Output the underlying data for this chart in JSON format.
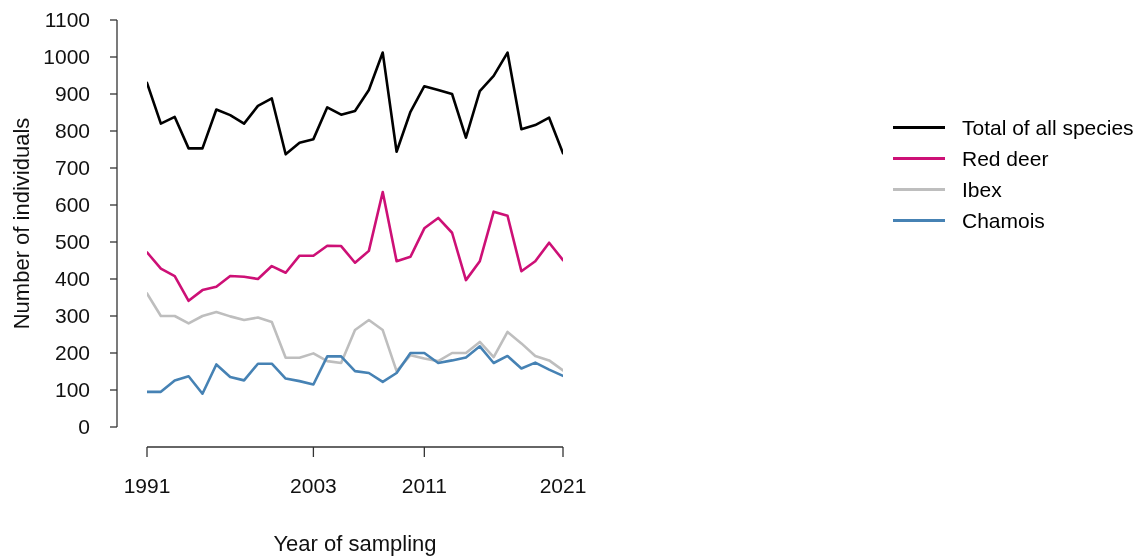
{
  "chart_data": {
    "type": "line",
    "xlabel": "Year of sampling",
    "ylabel": "Number of individuals",
    "x": [
      1991,
      1992,
      1993,
      1994,
      1995,
      1996,
      1997,
      1998,
      1999,
      2000,
      2001,
      2002,
      2003,
      2004,
      2005,
      2006,
      2007,
      2008,
      2009,
      2010,
      2011,
      2012,
      2013,
      2014,
      2015,
      2016,
      2017,
      2018,
      2019,
      2020,
      2021
    ],
    "xlim": [
      1991,
      2021
    ],
    "xticks": [
      1991,
      2003,
      2011,
      2021
    ],
    "ylim": [
      0,
      1100
    ],
    "yticks": [
      0,
      100,
      200,
      300,
      400,
      500,
      600,
      700,
      800,
      900,
      1000,
      1100
    ],
    "legend": "right",
    "line_style": "solid",
    "series": [
      {
        "name": "Total of all species",
        "color": "#000000",
        "values": [
          930,
          820,
          838,
          753,
          753,
          858,
          843,
          820,
          868,
          888,
          737,
          768,
          778,
          864,
          844,
          854,
          911,
          1012,
          744,
          852,
          921,
          911,
          900,
          782,
          908,
          949,
          1012,
          805,
          816,
          836,
          740
        ]
      },
      {
        "name": "Red deer",
        "color": "#cd1076",
        "values": [
          472,
          428,
          408,
          341,
          370,
          379,
          408,
          406,
          400,
          435,
          417,
          463,
          463,
          490,
          489,
          444,
          476,
          635,
          448,
          460,
          537,
          565,
          525,
          397,
          448,
          582,
          571,
          421,
          448,
          498,
          451
        ]
      },
      {
        "name": "Ibex",
        "color": "#bebebe",
        "values": [
          361,
          300,
          300,
          280,
          300,
          311,
          299,
          289,
          296,
          284,
          187,
          187,
          199,
          178,
          173,
          262,
          289,
          262,
          151,
          194,
          185,
          178,
          200,
          200,
          230,
          189,
          257,
          226,
          192,
          180,
          153
        ]
      },
      {
        "name": "Chamois",
        "color": "#4682b4",
        "values": [
          95,
          95,
          126,
          137,
          90,
          169,
          135,
          126,
          171,
          171,
          131,
          124,
          115,
          191,
          191,
          151,
          146,
          122,
          146,
          200,
          200,
          173,
          180,
          188,
          218,
          173,
          192,
          158,
          174,
          155,
          138
        ]
      }
    ]
  }
}
